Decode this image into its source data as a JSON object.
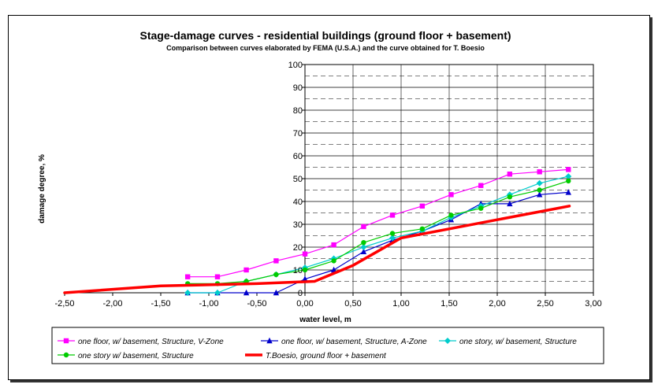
{
  "chart_data": {
    "type": "line",
    "title": "Stage-damage curves - residential buildings (ground floor + basement)",
    "subtitle": "Comparison between curves elaborated by FEMA (U.S.A.) and the curve obtained for T. Boesio",
    "xlabel": "water level, m",
    "ylabel": "damage degree, %",
    "xlim": [
      -2.5,
      3.0
    ],
    "ylim": [
      0,
      100
    ],
    "x_ticks": [
      -2.5,
      -2.0,
      -1.5,
      -1.0,
      -0.5,
      0.0,
      0.5,
      1.0,
      1.5,
      2.0,
      2.5,
      3.0
    ],
    "x_tick_labels": [
      "-2,50",
      "-2,00",
      "-1,50",
      "-1,00",
      "-0,50",
      "0,00",
      "0,50",
      "1,00",
      "1,50",
      "2,00",
      "2,50",
      "3,00"
    ],
    "y_ticks": [
      0,
      10,
      20,
      30,
      40,
      50,
      60,
      70,
      80,
      90,
      100
    ],
    "y_tick_labels": [
      "0",
      "10",
      "20",
      "30",
      "40",
      "50",
      "60",
      "70",
      "80",
      "90",
      "100"
    ],
    "grid": "horizontal dashed lines every 5 units, solid every 10",
    "legend_position": "bottom",
    "series": [
      {
        "name": "one floor, w/ basement, Structure, V-Zone",
        "color": "#ff00ff",
        "marker": "square",
        "x": [
          -1.22,
          -0.91,
          -0.61,
          -0.3,
          0.0,
          0.3,
          0.61,
          0.91,
          1.22,
          1.52,
          1.83,
          2.13,
          2.44,
          2.74
        ],
        "y": [
          7,
          7,
          10,
          14,
          17,
          21,
          29,
          34,
          38,
          43,
          47,
          52,
          53,
          54
        ]
      },
      {
        "name": "one floor, w/ basement, Structure, A-Zone",
        "color": "#0000cc",
        "marker": "triangle",
        "x": [
          -1.22,
          -0.91,
          -0.61,
          -0.3,
          0.0,
          0.3,
          0.61,
          0.91,
          1.22,
          1.52,
          1.83,
          2.13,
          2.44,
          2.74
        ],
        "y": [
          0,
          0,
          0,
          0,
          6,
          10,
          18,
          23,
          27,
          32,
          39,
          39,
          43,
          44
        ]
      },
      {
        "name": "one story, w/ basement, Structure",
        "color": "#00cccc",
        "marker": "diamond",
        "x": [
          -1.22,
          -0.91,
          -0.61,
          -0.3,
          0.0,
          0.3,
          0.61,
          0.91,
          1.22,
          1.52,
          1.83,
          2.13,
          2.44,
          2.74
        ],
        "y": [
          0,
          0,
          5,
          8,
          11,
          15,
          20,
          24,
          27,
          33,
          38,
          43,
          48,
          51
        ]
      },
      {
        "name": "one story w/ basement, Structure",
        "color": "#00cc00",
        "marker": "circle",
        "x": [
          -1.22,
          -0.91,
          -0.61,
          -0.3,
          0.0,
          0.3,
          0.61,
          0.91,
          1.22,
          1.52,
          1.83,
          2.13,
          2.44,
          2.74
        ],
        "y": [
          4,
          4,
          5,
          8,
          10,
          14,
          22,
          26,
          28,
          34,
          37,
          42,
          45,
          49
        ]
      },
      {
        "name": "T.Boesio, ground floor + basement",
        "color": "#ff0000",
        "marker": "none",
        "x": [
          -2.5,
          -1.5,
          -0.5,
          0.1,
          0.5,
          0.75,
          1.0,
          1.5,
          2.0,
          2.5,
          2.75
        ],
        "y": [
          0,
          3,
          4,
          5,
          12,
          18,
          24,
          28,
          32,
          36,
          38
        ]
      }
    ]
  }
}
